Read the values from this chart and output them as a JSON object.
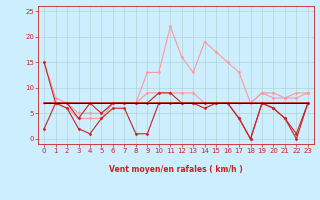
{
  "xlabel": "Vent moyen/en rafales ( km/h )",
  "xlim": [
    -0.5,
    23.5
  ],
  "ylim": [
    -1,
    26
  ],
  "yticks": [
    0,
    5,
    10,
    15,
    20,
    25
  ],
  "xticks": [
    0,
    1,
    2,
    3,
    4,
    5,
    6,
    7,
    8,
    9,
    10,
    11,
    12,
    13,
    14,
    15,
    16,
    17,
    18,
    19,
    20,
    21,
    22,
    23
  ],
  "bg_color": "#cceeff",
  "grid_color": "#aacccc",
  "series": [
    {
      "x": [
        0,
        1,
        2,
        3,
        4,
        5,
        6,
        7,
        8,
        9,
        10,
        11,
        12,
        13,
        14,
        15,
        16,
        17,
        18,
        19,
        20,
        21,
        22,
        23
      ],
      "y": [
        15,
        8,
        7,
        5,
        5,
        5,
        7,
        7,
        7,
        13,
        13,
        22,
        16,
        13,
        19,
        17,
        15,
        13,
        7,
        9,
        8,
        8,
        9,
        9
      ],
      "color": "#ff9999",
      "lw": 0.8,
      "marker": "D",
      "ms": 1.5,
      "zorder": 2
    },
    {
      "x": [
        0,
        1,
        2,
        3,
        4,
        5,
        6,
        7,
        8,
        9,
        10,
        11,
        12,
        13,
        14,
        15,
        16,
        17,
        18,
        19,
        20,
        21,
        22,
        23
      ],
      "y": [
        7,
        7,
        6,
        4,
        4,
        4,
        7,
        7,
        7,
        9,
        9,
        9,
        9,
        9,
        7,
        7,
        7,
        7,
        7,
        9,
        9,
        8,
        8,
        9
      ],
      "color": "#ff9999",
      "lw": 0.8,
      "marker": "D",
      "ms": 1.5,
      "zorder": 2
    },
    {
      "x": [
        0,
        1,
        2,
        3,
        4,
        5,
        6,
        7,
        8,
        9,
        10,
        11,
        12,
        13,
        14,
        15,
        16,
        17,
        18,
        19,
        20,
        21,
        22,
        23
      ],
      "y": [
        15,
        7,
        7,
        4,
        7,
        5,
        7,
        7,
        7,
        7,
        9,
        9,
        7,
        7,
        6,
        7,
        7,
        4,
        0,
        7,
        6,
        4,
        0,
        7
      ],
      "color": "#cc2222",
      "lw": 0.8,
      "marker": "D",
      "ms": 1.5,
      "zorder": 3
    },
    {
      "x": [
        0,
        1,
        2,
        3,
        4,
        5,
        6,
        7,
        8,
        9,
        10,
        11,
        12,
        13,
        14,
        15,
        16,
        17,
        18,
        19,
        20,
        21,
        22,
        23
      ],
      "y": [
        2,
        7,
        6,
        2,
        1,
        4,
        6,
        6,
        1,
        1,
        7,
        7,
        7,
        7,
        7,
        7,
        7,
        4,
        0,
        7,
        6,
        4,
        1,
        7
      ],
      "color": "#cc2222",
      "lw": 0.8,
      "marker": "D",
      "ms": 1.5,
      "zorder": 3
    },
    {
      "x": [
        0,
        1,
        2,
        3,
        4,
        5,
        6,
        7,
        8,
        9,
        10,
        11,
        12,
        13,
        14,
        15,
        16,
        17,
        18,
        19,
        20,
        21,
        22,
        23
      ],
      "y": [
        7,
        7,
        7,
        7,
        7,
        7,
        7,
        7,
        7,
        7,
        7,
        7,
        7,
        7,
        7,
        7,
        7,
        7,
        7,
        7,
        7,
        7,
        7,
        7
      ],
      "color": "#cc2222",
      "lw": 1.2,
      "marker": null,
      "ms": 0,
      "zorder": 3
    },
    {
      "x": [
        0,
        1,
        2,
        3,
        4,
        5,
        6,
        7,
        8,
        9,
        10,
        11,
        12,
        13,
        14,
        15,
        16,
        17,
        18,
        19,
        20,
        21,
        22,
        23
      ],
      "y": [
        7,
        7,
        7,
        7,
        7,
        7,
        7,
        7,
        7,
        7,
        7,
        7,
        7,
        7,
        7,
        7,
        7,
        7,
        7,
        7,
        7,
        7,
        7,
        7
      ],
      "color": "#330000",
      "lw": 0.7,
      "marker": null,
      "ms": 0,
      "zorder": 4
    }
  ],
  "wind_arrows": [
    "↙",
    "←",
    "←",
    "←",
    "→",
    "↙",
    "←",
    "←",
    "↑",
    "↙",
    "←",
    "←",
    "←",
    "↙",
    "←",
    "←",
    "↓",
    "←",
    "←",
    "←",
    "←",
    "↓",
    "←",
    "←"
  ],
  "xlabel_color": "#cc2222",
  "xlabel_fontsize": 5.5,
  "tick_color": "#cc2222",
  "tick_fontsize": 5,
  "spine_color": "#cc2222"
}
